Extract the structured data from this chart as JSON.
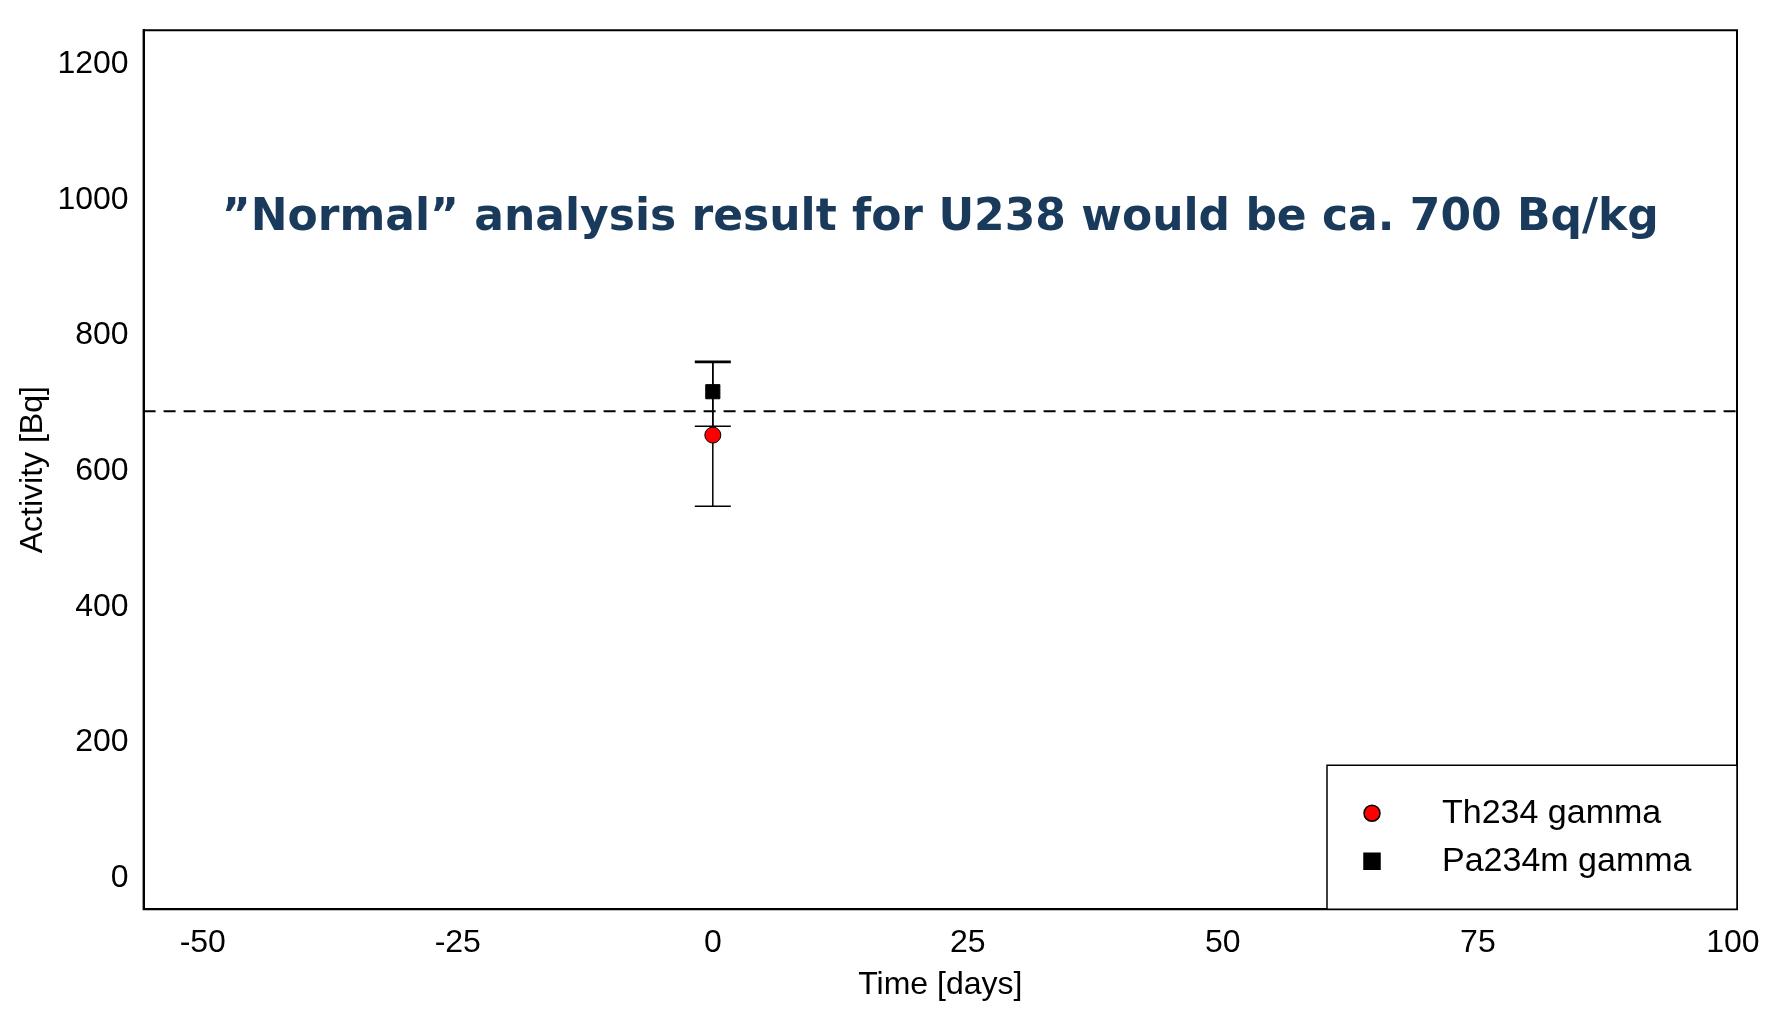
{
  "chart_data": {
    "type": "scatter",
    "xlabel": "Time [days]",
    "ylabel": "Activity [Bq]",
    "annotations": [
      "”Normal” analysis result for U238 would be ca. 700 Bq/kg"
    ],
    "series": [
      {
        "name": "Th234 gamma",
        "color": "#ff0000",
        "marker": "circle",
        "x": [
          0
        ],
        "values": [
          653
        ],
        "errors": [
          [
            548,
            760
          ]
        ]
      },
      {
        "name": "Pa234m gamma",
        "color": "#000000",
        "marker": "square",
        "x": [
          0
        ],
        "values": [
          717
        ],
        "errors": [
          [
            666,
            762
          ]
        ]
      }
    ],
    "ref_lines": [
      {
        "axis": "y",
        "value": 688,
        "color": "#000000",
        "line_style": "dashed"
      }
    ],
    "xlim": [
      -55.8,
      100.4
    ],
    "xticks": [
      -50,
      -25,
      0,
      25,
      50,
      75,
      100
    ],
    "ylim": [
      -46,
      1250
    ],
    "yticks": [
      0,
      200,
      400,
      600,
      800,
      1000,
      1200
    ],
    "grid": false,
    "legend": "bottom right"
  }
}
